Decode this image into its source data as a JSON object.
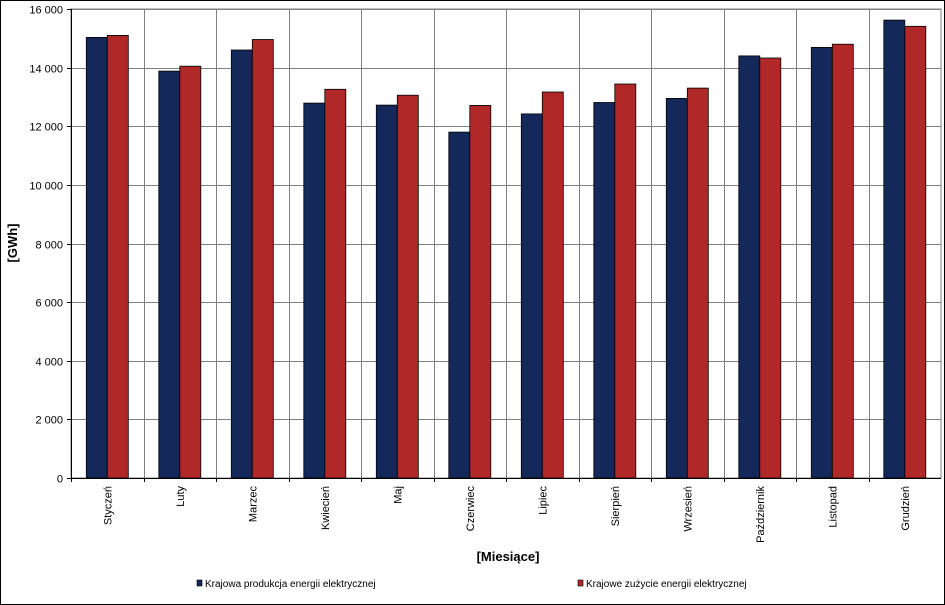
{
  "chart_data": {
    "type": "bar",
    "xlabel": "[Miesiące]",
    "ylabel": "[GWh]",
    "ylim": [
      0,
      16000
    ],
    "yticks": [
      0,
      2000,
      4000,
      6000,
      8000,
      10000,
      12000,
      14000,
      16000
    ],
    "ytick_labels": [
      "0",
      "2 000",
      "4 000",
      "6 000",
      "8 000",
      "10 000",
      "12 000",
      "14 000",
      "16 000"
    ],
    "categories": [
      "Styczeń",
      "Luty",
      "Marzec",
      "Kwiecień",
      "Maj",
      "Czerwiec",
      "Lipiec",
      "Sierpień",
      "Wrzesień",
      "Październik",
      "Listopad",
      "Grudzień"
    ],
    "series": [
      {
        "name": "Krajowa produkcja energii elektrycznej",
        "color": "#14285a",
        "values": [
          15030,
          13880,
          14600,
          12790,
          12720,
          11800,
          12420,
          12810,
          12950,
          14400,
          14690,
          15620
        ]
      },
      {
        "name": "Krajowe zużycie energii elektrycznej",
        "color": "#b02828",
        "values": [
          15100,
          14050,
          14960,
          13260,
          13060,
          12710,
          13170,
          13440,
          13300,
          14330,
          14800,
          15410
        ]
      }
    ],
    "grid": true,
    "legend_position": "bottom"
  }
}
